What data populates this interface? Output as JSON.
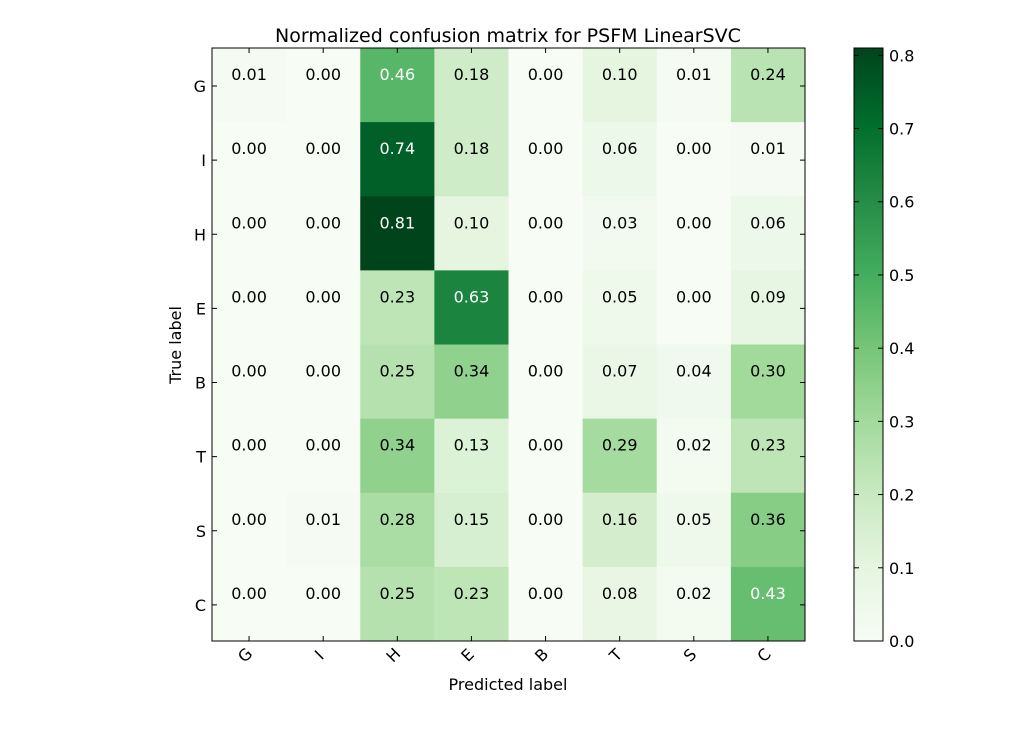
{
  "chart_data": {
    "type": "heatmap",
    "title": "Normalized confusion matrix for PSFM LinearSVC",
    "xlabel": "Predicted label",
    "ylabel": "True label",
    "x_categories": [
      "G",
      "I",
      "H",
      "E",
      "B",
      "T",
      "S",
      "C"
    ],
    "y_categories": [
      "G",
      "I",
      "H",
      "E",
      "B",
      "T",
      "S",
      "C"
    ],
    "values": [
      [
        0.01,
        0.0,
        0.46,
        0.18,
        0.0,
        0.1,
        0.01,
        0.24
      ],
      [
        0.0,
        0.0,
        0.74,
        0.18,
        0.0,
        0.06,
        0.0,
        0.01
      ],
      [
        0.0,
        0.0,
        0.81,
        0.1,
        0.0,
        0.03,
        0.0,
        0.06
      ],
      [
        0.0,
        0.0,
        0.23,
        0.63,
        0.0,
        0.05,
        0.0,
        0.09
      ],
      [
        0.0,
        0.0,
        0.25,
        0.34,
        0.0,
        0.07,
        0.04,
        0.3
      ],
      [
        0.0,
        0.0,
        0.34,
        0.13,
        0.0,
        0.29,
        0.02,
        0.23
      ],
      [
        0.0,
        0.01,
        0.28,
        0.15,
        0.0,
        0.16,
        0.05,
        0.36
      ],
      [
        0.0,
        0.0,
        0.25,
        0.23,
        0.0,
        0.08,
        0.02,
        0.43
      ]
    ],
    "value_format": "2 decimals",
    "colormap": "Greens",
    "colormap_stops": [
      "#f7fcf5",
      "#e5f5e0",
      "#c7e9c0",
      "#a1d99b",
      "#74c476",
      "#41ab5d",
      "#238b45",
      "#006d2c",
      "#00441b"
    ],
    "colorbar": {
      "range": [
        0.0,
        0.81
      ],
      "ticks": [
        "0.0",
        "0.1",
        "0.2",
        "0.3",
        "0.4",
        "0.5",
        "0.6",
        "0.7",
        "0.8"
      ]
    },
    "cell_text_colors": {
      "dark": "#000000",
      "light": "#ffffff"
    },
    "x_tick_rotation_deg": 45,
    "grid": false
  }
}
